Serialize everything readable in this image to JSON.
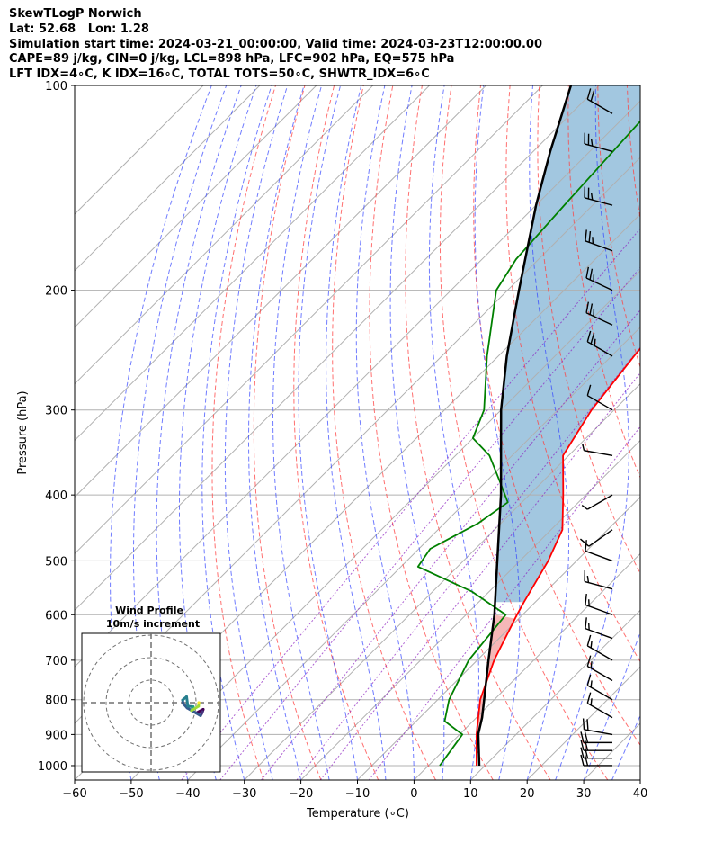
{
  "header": {
    "title": "SkewTLogP Norwich",
    "location": "Lat: 52.68   Lon: 1.28",
    "times": "Simulation start time: 2024-03-21_00:00:00, Valid time: 2024-03-23T12:00:00.00",
    "indices1": "CAPE=89 j/kg, CIN=0 j/kg, LCL=898 hPa, LFC=902 hPa, EQ=575 hPa",
    "indices2": "LFT IDX=4∘C, K IDX=16∘C, TOTAL TOTS=50∘C, SHWTR_IDX=6∘C"
  },
  "chart_data": {
    "type": "line",
    "xlabel": "Temperature (∘C)",
    "ylabel": "Pressure (hPa)",
    "xlim": [
      -60,
      40
    ],
    "ylim": [
      1050,
      100
    ],
    "yscale": "log",
    "skew": true,
    "grid": true,
    "x_ticks": [
      -60,
      -50,
      -40,
      -30,
      -20,
      -10,
      0,
      10,
      20,
      30,
      40
    ],
    "x_tick_labels": [
      "−60",
      "−50",
      "−40",
      "−30",
      "−20",
      "−10",
      "0",
      "10",
      "20",
      "30",
      "40"
    ],
    "y_ticks": [
      1000,
      900,
      800,
      700,
      600,
      500,
      400,
      300,
      200,
      100
    ],
    "y_tick_labels": [
      "1000",
      "900",
      "800",
      "700",
      "600",
      "500",
      "400",
      "300",
      "200",
      "100"
    ],
    "series": [
      {
        "role": "temperature",
        "color": "#ff0000",
        "points": [
          [
            1000,
            8.5
          ],
          [
            900,
            3.0
          ],
          [
            800,
            -2.5
          ],
          [
            700,
            -7.0
          ],
          [
            600,
            -11.0
          ],
          [
            575,
            -12.0
          ],
          [
            500,
            -15.0
          ],
          [
            450,
            -18.0
          ],
          [
            400,
            -24.0
          ],
          [
            350,
            -31.0
          ],
          [
            300,
            -34.0
          ],
          [
            250,
            -36.0
          ],
          [
            200,
            -38.0
          ],
          [
            150,
            -41.0
          ],
          [
            125,
            -42.5
          ],
          [
            100,
            -46.0
          ]
        ]
      },
      {
        "role": "dewpoint",
        "color": "#008000",
        "points": [
          [
            1000,
            2.0
          ],
          [
            900,
            0.5
          ],
          [
            860,
            -5.0
          ],
          [
            800,
            -8.0
          ],
          [
            700,
            -11.5
          ],
          [
            600,
            -13.0
          ],
          [
            555,
            -23.0
          ],
          [
            510,
            -37.0
          ],
          [
            480,
            -38.0
          ],
          [
            440,
            -34.0
          ],
          [
            410,
            -32.5
          ],
          [
            380,
            -38.0
          ],
          [
            350,
            -44.0
          ],
          [
            330,
            -50.0
          ],
          [
            300,
            -53.0
          ],
          [
            250,
            -62.0
          ],
          [
            200,
            -72.0
          ],
          [
            180,
            -74.0
          ],
          [
            150,
            -75.0
          ],
          [
            100,
            -77.0
          ]
        ]
      },
      {
        "role": "parcel",
        "color": "#000000",
        "points": [
          [
            1000,
            9.0
          ],
          [
            898,
            3.2
          ],
          [
            850,
            1.0
          ],
          [
            800,
            -1.8
          ],
          [
            700,
            -8.0
          ],
          [
            600,
            -15.0
          ],
          [
            500,
            -24.0
          ],
          [
            400,
            -35.0
          ],
          [
            300,
            -50.0
          ],
          [
            250,
            -58.5
          ],
          [
            200,
            -68.0
          ],
          [
            150,
            -80.0
          ],
          [
            125,
            -87.0
          ],
          [
            100,
            -95.0
          ]
        ]
      }
    ],
    "cape_fill_color": "#a2c7e0",
    "wind_barbs": [
      {
        "p": 1000,
        "speed_kt": 20,
        "dir": 270
      },
      {
        "p": 975,
        "speed_kt": 20,
        "dir": 270
      },
      {
        "p": 950,
        "speed_kt": 20,
        "dir": 270
      },
      {
        "p": 925,
        "speed_kt": 20,
        "dir": 270
      },
      {
        "p": 900,
        "speed_kt": 20,
        "dir": 280
      },
      {
        "p": 850,
        "speed_kt": 15,
        "dir": 300
      },
      {
        "p": 800,
        "speed_kt": 15,
        "dir": 300
      },
      {
        "p": 750,
        "speed_kt": 15,
        "dir": 300
      },
      {
        "p": 700,
        "speed_kt": 15,
        "dir": 300
      },
      {
        "p": 650,
        "speed_kt": 15,
        "dir": 290
      },
      {
        "p": 600,
        "speed_kt": 15,
        "dir": 290
      },
      {
        "p": 550,
        "speed_kt": 15,
        "dir": 285
      },
      {
        "p": 500,
        "speed_kt": 10,
        "dir": 290
      },
      {
        "p": 450,
        "speed_kt": 10,
        "dir": 235
      },
      {
        "p": 400,
        "speed_kt": 5,
        "dir": 240
      },
      {
        "p": 350,
        "speed_kt": 5,
        "dir": 280
      },
      {
        "p": 300,
        "speed_kt": 10,
        "dir": 300
      },
      {
        "p": 250,
        "speed_kt": 25,
        "dir": 300
      },
      {
        "p": 225,
        "speed_kt": 25,
        "dir": 295
      },
      {
        "p": 200,
        "speed_kt": 25,
        "dir": 295
      },
      {
        "p": 175,
        "speed_kt": 25,
        "dir": 290
      },
      {
        "p": 150,
        "speed_kt": 25,
        "dir": 285
      },
      {
        "p": 125,
        "speed_kt": 25,
        "dir": 285
      },
      {
        "p": 110,
        "speed_kt": 20,
        "dir": 300
      }
    ],
    "hodograph": {
      "title": "Wind Profile",
      "subtitle": "10m/s increment",
      "rings": [
        10,
        20,
        30
      ],
      "colormap": "viridis"
    }
  }
}
